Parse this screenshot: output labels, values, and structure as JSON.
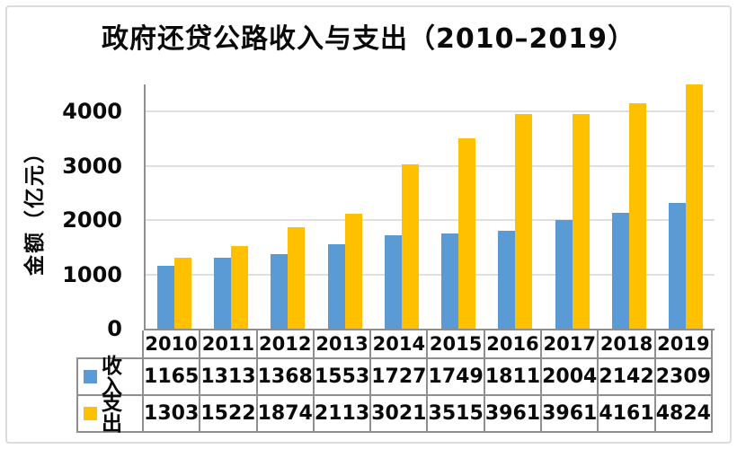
{
  "frame": {
    "background": "#ffffff",
    "border_color": "#dcdcdc",
    "text_color": "#0a0a0a",
    "axis_color": "#8f8f8f",
    "gridline_color": "#dfdfdf"
  },
  "chart_data": {
    "type": "bar",
    "title": "政府还贷公路收入与支出（2010–2019）",
    "xlabel": "",
    "ylabel": "金额（亿元）",
    "categories": [
      "2010",
      "2011",
      "2012",
      "2013",
      "2014",
      "2015",
      "2016",
      "2017",
      "2018",
      "2019"
    ],
    "series": [
      {
        "name": "收入",
        "key": "income",
        "color": "#5B9BD5",
        "values": [
          1165,
          1313,
          1368,
          1553,
          1727,
          1749,
          1811,
          2004,
          2142,
          2309
        ]
      },
      {
        "name": "支出",
        "key": "expenditure",
        "color": "#FFC000",
        "values": [
          1303,
          1522,
          1874,
          2113,
          3021,
          3515,
          3961,
          3961,
          4161,
          4824
        ]
      }
    ],
    "ylim": [
      0,
      4500
    ],
    "yticks": [
      0,
      1000,
      2000,
      3000,
      4000
    ],
    "grid": true,
    "legend_position": "data-table-left",
    "data_table_shown": true
  }
}
